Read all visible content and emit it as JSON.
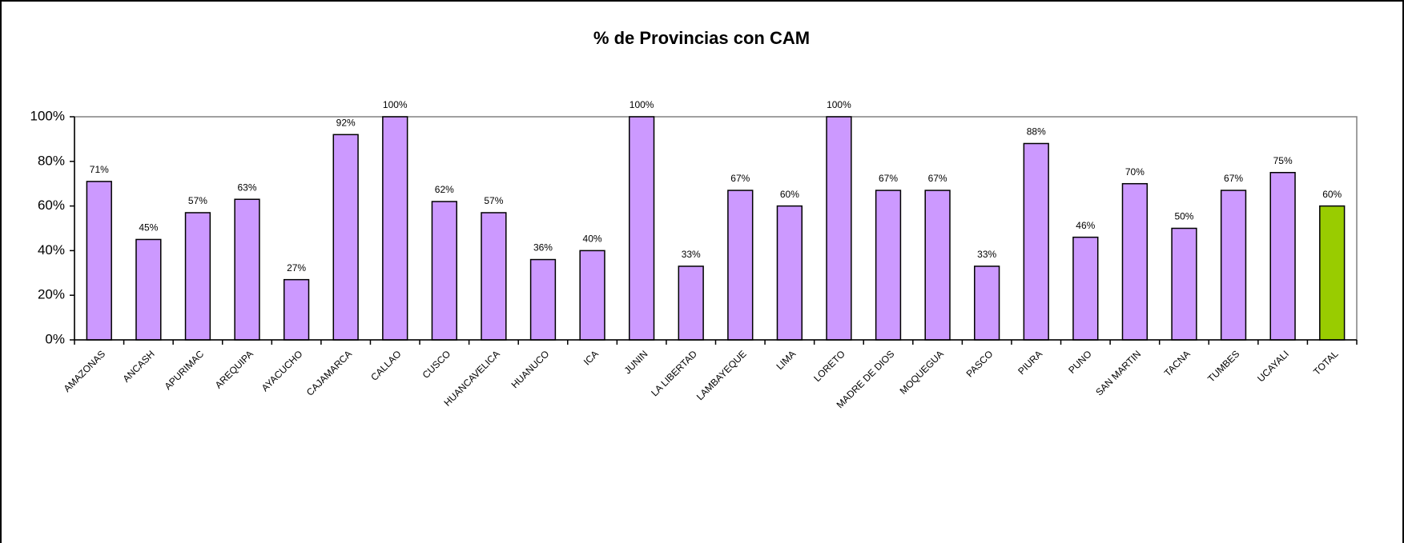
{
  "chart_data": {
    "type": "bar",
    "title": "% de Provincias con CAM",
    "categories": [
      "AMAZONAS",
      "ANCASH",
      "APURIMAC",
      "AREQUIPA",
      "AYACUCHO",
      "CAJAMARCA",
      "CALLAO",
      "CUSCO",
      "HUANCAVELICA",
      "HUANUCO",
      "ICA",
      "JUNIN",
      "LA LIBERTAD",
      "LAMBAYEQUE",
      "LIMA",
      "LORETO",
      "MADRE DE DIOS",
      "MOQUEGUA",
      "PASCO",
      "PIURA",
      "PUNO",
      "SAN MARTIN",
      "TACNA",
      "TUMBES",
      "UCAYALI",
      "TOTAL"
    ],
    "values": [
      71,
      45,
      57,
      63,
      27,
      92,
      100,
      62,
      57,
      36,
      40,
      100,
      33,
      67,
      60,
      100,
      67,
      67,
      33,
      88,
      46,
      70,
      50,
      67,
      75,
      60
    ],
    "value_labels": [
      "71%",
      "45%",
      "57%",
      "63%",
      "27%",
      "92%",
      "100%",
      "62%",
      "57%",
      "36%",
      "40%",
      "100%",
      "33%",
      "67%",
      "60%",
      "100%",
      "67%",
      "67%",
      "33%",
      "88%",
      "46%",
      "70%",
      "50%",
      "67%",
      "75%",
      "60%"
    ],
    "colors": [
      "#cc99ff",
      "#cc99ff",
      "#cc99ff",
      "#cc99ff",
      "#cc99ff",
      "#cc99ff",
      "#cc99ff",
      "#cc99ff",
      "#cc99ff",
      "#cc99ff",
      "#cc99ff",
      "#cc99ff",
      "#cc99ff",
      "#cc99ff",
      "#cc99ff",
      "#cc99ff",
      "#cc99ff",
      "#cc99ff",
      "#cc99ff",
      "#cc99ff",
      "#cc99ff",
      "#cc99ff",
      "#cc99ff",
      "#cc99ff",
      "#cc99ff",
      "#99cc00"
    ],
    "ylim": [
      0,
      100
    ],
    "yticks": [
      {
        "value": 0,
        "label": "0%"
      },
      {
        "value": 20,
        "label": "20%"
      },
      {
        "value": 40,
        "label": "40%"
      },
      {
        "value": 60,
        "label": "60%"
      },
      {
        "value": 80,
        "label": "80%"
      },
      {
        "value": 100,
        "label": "100%"
      }
    ],
    "grid": false
  }
}
